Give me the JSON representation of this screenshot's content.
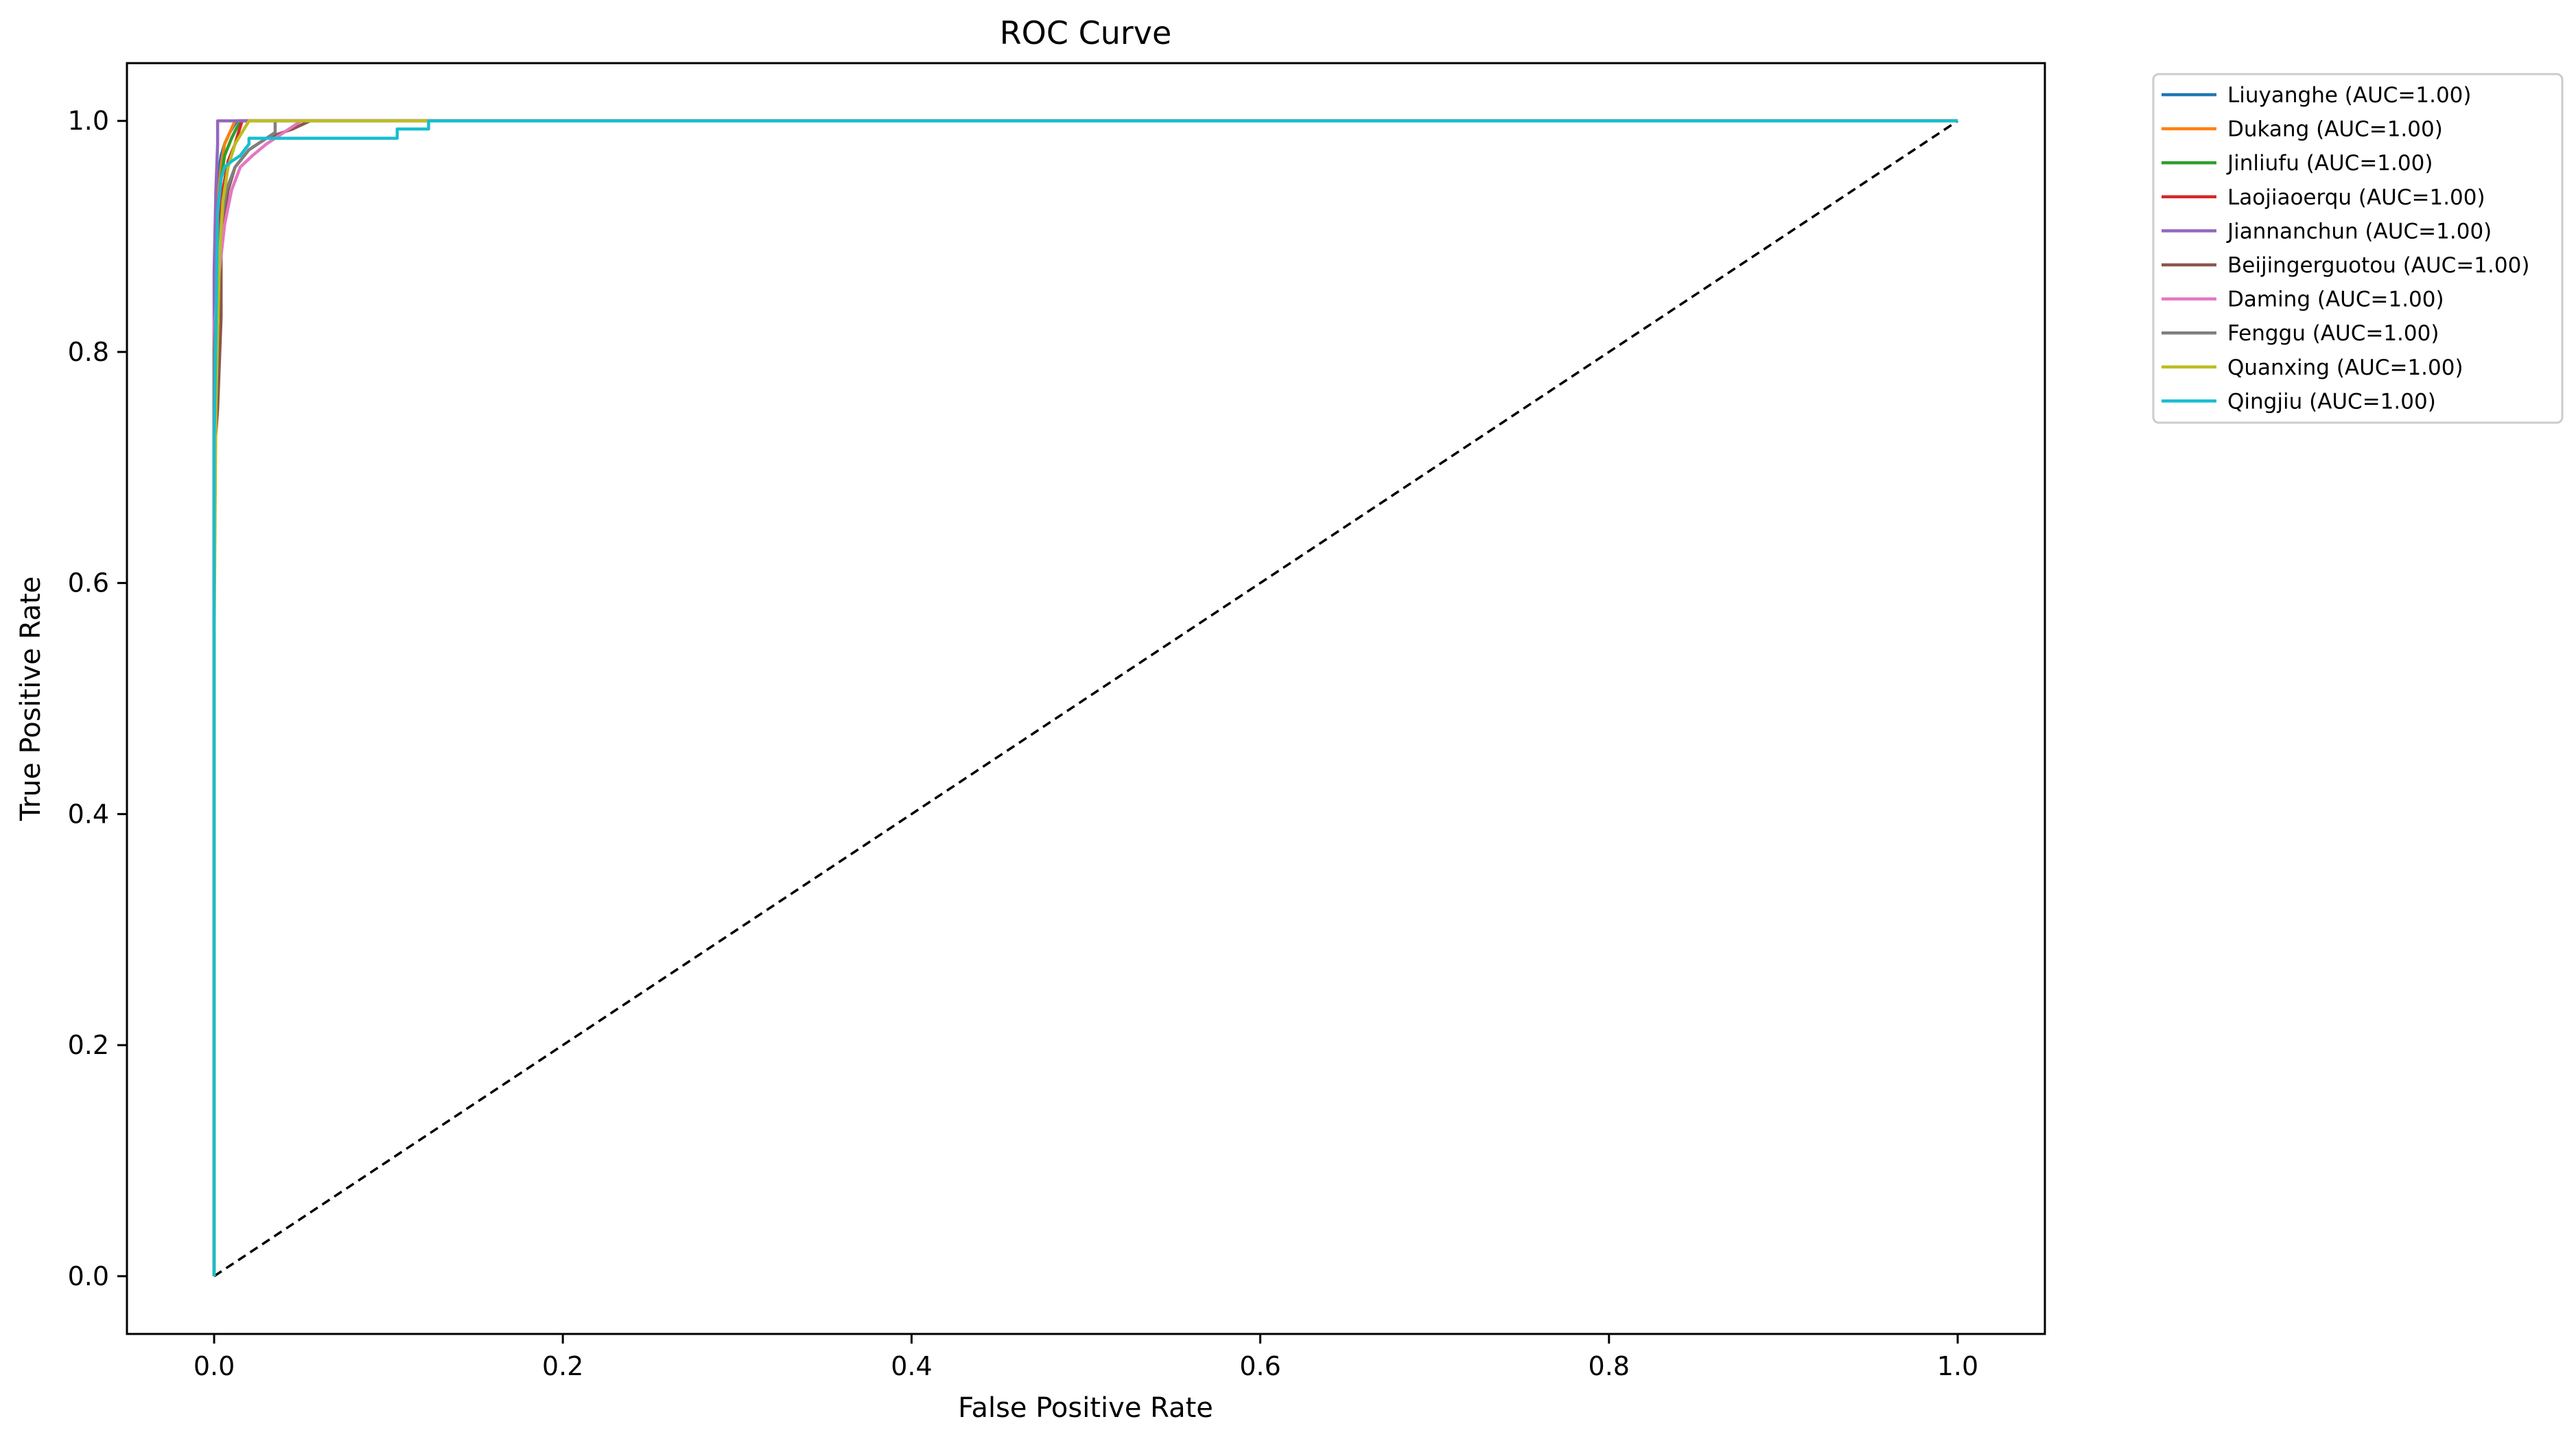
{
  "chart_data": {
    "type": "line",
    "title": "ROC Curve",
    "xlabel": "False Positive Rate",
    "ylabel": "True Positive Rate",
    "xlim": [
      -0.05,
      1.05
    ],
    "ylim": [
      -0.05,
      1.05
    ],
    "xticks": [
      0.0,
      0.2,
      0.4,
      0.6,
      0.8,
      1.0
    ],
    "yticks": [
      0.0,
      0.2,
      0.4,
      0.6,
      0.8,
      1.0
    ],
    "xtick_labels": [
      "0.0",
      "0.2",
      "0.4",
      "0.6",
      "0.8",
      "1.0"
    ],
    "ytick_labels": [
      "0.0",
      "0.2",
      "0.4",
      "0.6",
      "0.8",
      "1.0"
    ],
    "grid": false,
    "legend_position": "outside upper right",
    "diagonal": {
      "x": [
        0,
        1
      ],
      "y": [
        0,
        1
      ],
      "color": "#000000",
      "style": "dashed"
    },
    "series": [
      {
        "name": "Liuyanghe (AUC=1.00)",
        "color": "#1f77b4",
        "x": [
          0,
          0,
          0.001,
          0.002,
          0.002,
          0.004,
          0.006,
          0.009,
          0.013,
          1
        ],
        "y": [
          0,
          0.82,
          0.87,
          0.92,
          0.95,
          0.97,
          0.98,
          0.99,
          1.0,
          1.0
        ]
      },
      {
        "name": "Dukang (AUC=1.00)",
        "color": "#ff7f0e",
        "x": [
          0,
          0,
          0.001,
          0.002,
          0.004,
          0.006,
          0.009,
          0.012,
          1
        ],
        "y": [
          0,
          0.8,
          0.88,
          0.93,
          0.96,
          0.98,
          0.99,
          1.0,
          1.0
        ]
      },
      {
        "name": "Jinliufu (AUC=1.00)",
        "color": "#2ca02c",
        "x": [
          0,
          0,
          0.001,
          0.002,
          0.004,
          0.006,
          0.01,
          0.015,
          1
        ],
        "y": [
          0,
          0.78,
          0.86,
          0.92,
          0.95,
          0.97,
          0.985,
          1.0,
          1.0
        ]
      },
      {
        "name": "Laojiaoerqu (AUC=1.00)",
        "color": "#d62728",
        "x": [
          0,
          0,
          0.001,
          0.003,
          0.005,
          0.008,
          0.012,
          0.016,
          1
        ],
        "y": [
          0,
          0.76,
          0.85,
          0.91,
          0.94,
          0.965,
          0.98,
          1.0,
          1.0
        ]
      },
      {
        "name": "Jiannanchun (AUC=1.00)",
        "color": "#9467bd",
        "x": [
          0,
          0,
          0.001,
          0.002,
          0.002,
          1
        ],
        "y": [
          0,
          0.87,
          0.94,
          0.98,
          1.0,
          1.0
        ]
      },
      {
        "name": "Beijingerguotou (AUC=1.00)",
        "color": "#8c564b",
        "x": [
          0,
          0,
          0.002,
          0.004,
          0.004,
          0.008,
          0.012,
          0.02,
          0.03,
          0.045,
          0.055,
          1
        ],
        "y": [
          0,
          0.71,
          0.75,
          0.83,
          0.9,
          0.94,
          0.96,
          0.975,
          0.985,
          0.993,
          1.0,
          1.0
        ]
      },
      {
        "name": "Daming (AUC=1.00)",
        "color": "#e377c2",
        "x": [
          0,
          0,
          0.003,
          0.006,
          0.01,
          0.015,
          0.022,
          0.03,
          0.04,
          0.05,
          1
        ],
        "y": [
          0,
          0.82,
          0.87,
          0.91,
          0.94,
          0.96,
          0.97,
          0.98,
          0.99,
          1.0,
          1.0
        ]
      },
      {
        "name": "Fenggu (AUC=1.00)",
        "color": "#7f7f7f",
        "x": [
          0,
          0,
          0.002,
          0.004,
          0.007,
          0.012,
          0.02,
          0.03,
          0.035,
          0.035,
          1
        ],
        "y": [
          0,
          0.8,
          0.86,
          0.91,
          0.94,
          0.96,
          0.975,
          0.985,
          0.99,
          1.0,
          1.0
        ]
      },
      {
        "name": "Quanxing (AUC=1.00)",
        "color": "#bcbd22",
        "x": [
          0,
          0,
          0.001,
          0.003,
          0.005,
          0.008,
          0.012,
          0.016,
          0.02,
          1
        ],
        "y": [
          0,
          0.55,
          0.75,
          0.88,
          0.93,
          0.96,
          0.98,
          0.99,
          1.0,
          1.0
        ]
      },
      {
        "name": "Qingjiu (AUC=1.00)",
        "color": "#17becf",
        "x": [
          0,
          0,
          0.002,
          0.004,
          0.006,
          0.01,
          0.015,
          0.02,
          0.02,
          0.105,
          0.105,
          0.123,
          0.123,
          1
        ],
        "y": [
          0,
          0.72,
          0.92,
          0.95,
          0.96,
          0.965,
          0.97,
          0.98,
          0.985,
          0.985,
          0.993,
          0.993,
          1.0,
          1.0
        ]
      }
    ]
  }
}
